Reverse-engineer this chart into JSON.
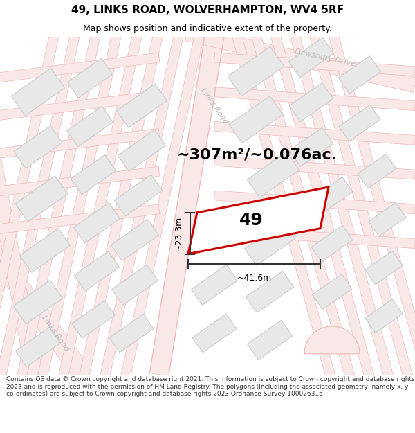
{
  "title": "49, LINKS ROAD, WOLVERHAMPTON, WV4 5RF",
  "subtitle": "Map shows position and indicative extent of the property.",
  "area_text": "~307m²/~0.076ac.",
  "label_49": "49",
  "dim_width": "~41.6m",
  "dim_height": "~23.3m",
  "footer": "Contains OS data © Crown copyright and database right 2021. This information is subject to Crown copyright and database rights 2023 and is reproduced with the permission of HM Land Registry. The polygons (including the associated geometry, namely x, y co-ordinates) are subject to Crown copyright and database rights 2023 Ordnance Survey 100026316.",
  "bg_color": "#ffffff",
  "road_fill": "#f9e8e8",
  "road_edge": "#f0b8b8",
  "building_fill": "#e8e8e8",
  "building_edge": "#cccccc",
  "highlight_color": "#cc0000",
  "dim_color": "#333333",
  "road_label_color": "#bbbbbb",
  "title_color": "#000000",
  "footer_color": "#333333",
  "title_fontsize": 11,
  "subtitle_fontsize": 9,
  "area_fontsize": 16,
  "label_fontsize": 18,
  "dim_fontsize": 9,
  "footer_fontsize": 6.5,
  "road_label_fontsize": 8
}
